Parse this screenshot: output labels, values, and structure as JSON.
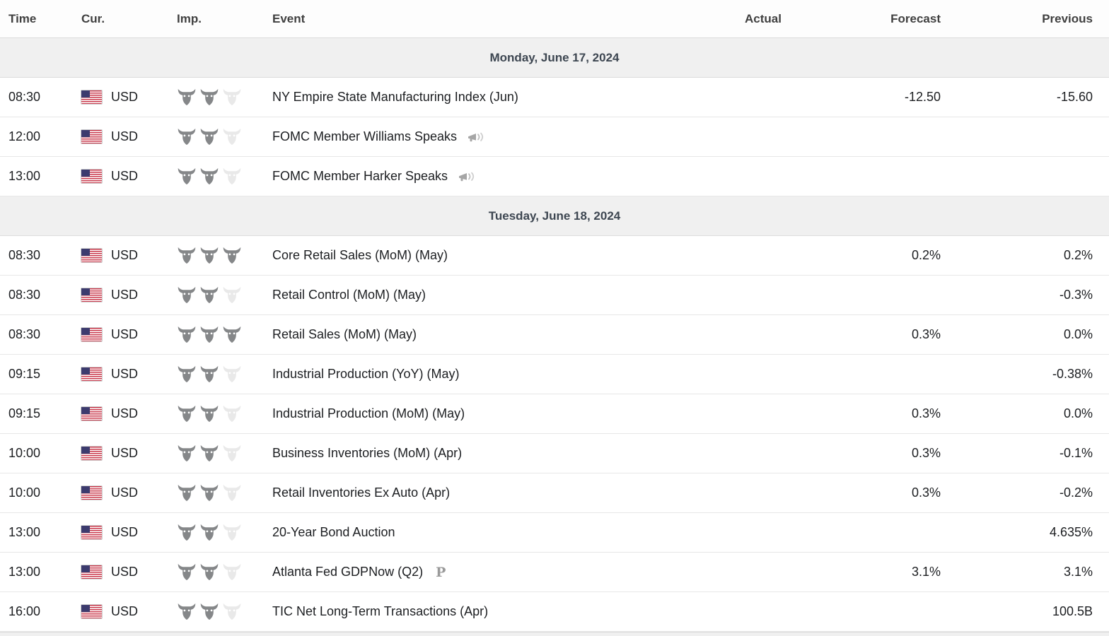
{
  "table": {
    "columns": [
      "Time",
      "Cur.",
      "Imp.",
      "Event",
      "Actual",
      "Forecast",
      "Previous"
    ],
    "max_importance": 3
  },
  "colors": {
    "row_background": "#ffffff",
    "section_background": "#f0f0f0",
    "section_text": "#3d4651",
    "header_text": "#404040",
    "row_text": "#1c1e21",
    "bull_active": "#858789",
    "bull_inactive": "#e9e9e9",
    "border": "#e7e7e7",
    "flag_blue": "#3c3b6e",
    "flag_red": "#c8374a"
  },
  "icons": {
    "importance": "bull-icon",
    "speech": "megaphone-icon",
    "preliminary_mark": "P",
    "flag": "us-flag-icon"
  },
  "sections": [
    {
      "date": "Monday, June 17, 2024",
      "rows": [
        {
          "time": "08:30",
          "currency": "USD",
          "importance": 2,
          "event": "NY Empire State Manufacturing Index (Jun)",
          "speech": false,
          "preliminary": false,
          "actual": "",
          "forecast": "-12.50",
          "previous": "-15.60"
        },
        {
          "time": "12:00",
          "currency": "USD",
          "importance": 2,
          "event": "FOMC Member Williams Speaks",
          "speech": true,
          "preliminary": false,
          "actual": "",
          "forecast": "",
          "previous": ""
        },
        {
          "time": "13:00",
          "currency": "USD",
          "importance": 2,
          "event": "FOMC Member Harker Speaks",
          "speech": true,
          "preliminary": false,
          "actual": "",
          "forecast": "",
          "previous": ""
        }
      ]
    },
    {
      "date": "Tuesday, June 18, 2024",
      "rows": [
        {
          "time": "08:30",
          "currency": "USD",
          "importance": 3,
          "event": "Core Retail Sales (MoM) (May)",
          "speech": false,
          "preliminary": false,
          "actual": "",
          "forecast": "0.2%",
          "previous": "0.2%"
        },
        {
          "time": "08:30",
          "currency": "USD",
          "importance": 2,
          "event": "Retail Control (MoM) (May)",
          "speech": false,
          "preliminary": false,
          "actual": "",
          "forecast": "",
          "previous": "-0.3%"
        },
        {
          "time": "08:30",
          "currency": "USD",
          "importance": 3,
          "event": "Retail Sales (MoM) (May)",
          "speech": false,
          "preliminary": false,
          "actual": "",
          "forecast": "0.3%",
          "previous": "0.0%"
        },
        {
          "time": "09:15",
          "currency": "USD",
          "importance": 2,
          "event": "Industrial Production (YoY) (May)",
          "speech": false,
          "preliminary": false,
          "actual": "",
          "forecast": "",
          "previous": "-0.38%"
        },
        {
          "time": "09:15",
          "currency": "USD",
          "importance": 2,
          "event": "Industrial Production (MoM) (May)",
          "speech": false,
          "preliminary": false,
          "actual": "",
          "forecast": "0.3%",
          "previous": "0.0%"
        },
        {
          "time": "10:00",
          "currency": "USD",
          "importance": 2,
          "event": "Business Inventories (MoM) (Apr)",
          "speech": false,
          "preliminary": false,
          "actual": "",
          "forecast": "0.3%",
          "previous": "-0.1%"
        },
        {
          "time": "10:00",
          "currency": "USD",
          "importance": 2,
          "event": "Retail Inventories Ex Auto (Apr)",
          "speech": false,
          "preliminary": false,
          "actual": "",
          "forecast": "0.3%",
          "previous": "-0.2%"
        },
        {
          "time": "13:00",
          "currency": "USD",
          "importance": 2,
          "event": "20-Year Bond Auction",
          "speech": false,
          "preliminary": false,
          "actual": "",
          "forecast": "",
          "previous": "4.635%"
        },
        {
          "time": "13:00",
          "currency": "USD",
          "importance": 2,
          "event": "Atlanta Fed GDPNow (Q2)",
          "speech": false,
          "preliminary": true,
          "actual": "",
          "forecast": "3.1%",
          "previous": "3.1%"
        },
        {
          "time": "16:00",
          "currency": "USD",
          "importance": 2,
          "event": "TIC Net Long-Term Transactions (Apr)",
          "speech": false,
          "preliminary": false,
          "actual": "",
          "forecast": "",
          "previous": "100.5B"
        }
      ]
    }
  ],
  "footer": {
    "next_section_partial": true
  }
}
